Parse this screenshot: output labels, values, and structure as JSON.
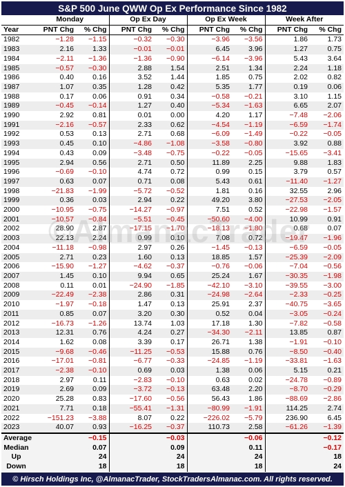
{
  "title": "S&P 500 June QWW Op Ex Performance Since 1982",
  "footer": "© Hirsch Holdings Inc, @AlmanacTrader, StockTradersAlmanac.com. All rights reserved.",
  "watermark": "©AlmanacTrader",
  "colors": {
    "header_bg": "#161a4d",
    "negative": "#e00000",
    "stripe": "#ededed"
  },
  "chart_data": {
    "type": "table",
    "groups": [
      "Monday",
      "Op Ex Day",
      "Op Ex Week",
      "Week After"
    ],
    "columns": [
      "Year",
      "PNT Chg",
      "% Chg",
      "PNT Chg",
      "% Chg",
      "PNT Chg",
      "% Chg",
      "PNT Chg",
      "% Chg"
    ],
    "rows": [
      [
        "1982",
        "−1.28",
        "−1.15",
        "−0.32",
        "−0.30",
        "−3.96",
        "−3.56",
        "1.86",
        "1.73"
      ],
      [
        "1983",
        "2.16",
        "1.33",
        "−0.01",
        "−0.01",
        "6.45",
        "3.96",
        "1.27",
        "0.75"
      ],
      [
        "1984",
        "−2.11",
        "−1.36",
        "−1.36",
        "−0.90",
        "−6.14",
        "−3.96",
        "5.43",
        "3.64"
      ],
      [
        "1985",
        "−0.57",
        "−0.30",
        "2.88",
        "1.54",
        "2.51",
        "1.34",
        "2.24",
        "1.18"
      ],
      [
        "1986",
        "0.40",
        "0.16",
        "3.52",
        "1.44",
        "1.85",
        "0.75",
        "2.02",
        "0.82"
      ],
      [
        "1987",
        "1.07",
        "0.35",
        "1.28",
        "0.42",
        "5.35",
        "1.77",
        "0.19",
        "0.06"
      ],
      [
        "1988",
        "0.17",
        "0.06",
        "0.91",
        "0.34",
        "−0.58",
        "−0.21",
        "3.10",
        "1.15"
      ],
      [
        "1989",
        "−0.45",
        "−0.14",
        "1.27",
        "0.40",
        "−5.34",
        "−1.63",
        "6.65",
        "2.07"
      ],
      [
        "1990",
        "2.92",
        "0.81",
        "0.01",
        "0.00",
        "4.20",
        "1.17",
        "−7.48",
        "−2.06"
      ],
      [
        "1991",
        "−2.16",
        "−0.57",
        "2.33",
        "0.62",
        "−4.54",
        "−1.19",
        "−6.59",
        "−1.74"
      ],
      [
        "1992",
        "0.53",
        "0.13",
        "2.71",
        "0.68",
        "−6.09",
        "−1.49",
        "−0.22",
        "−0.05"
      ],
      [
        "1993",
        "0.45",
        "0.10",
        "−4.86",
        "−1.08",
        "−3.58",
        "−0.80",
        "3.92",
        "0.88"
      ],
      [
        "1994",
        "0.43",
        "0.09",
        "−3.48",
        "−0.75",
        "−0.22",
        "−0.05",
        "−15.65",
        "−3.41"
      ],
      [
        "1995",
        "2.94",
        "0.56",
        "2.71",
        "0.50",
        "11.89",
        "2.25",
        "9.88",
        "1.83"
      ],
      [
        "1996",
        "−0.69",
        "−0.10",
        "4.74",
        "0.72",
        "0.99",
        "0.15",
        "3.79",
        "0.57"
      ],
      [
        "1997",
        "0.63",
        "0.07",
        "0.71",
        "0.08",
        "5.43",
        "0.61",
        "−11.40",
        "−1.27"
      ],
      [
        "1998",
        "−21.83",
        "−1.99",
        "−5.72",
        "−0.52",
        "1.81",
        "0.16",
        "32.55",
        "2.96"
      ],
      [
        "1999",
        "0.36",
        "0.03",
        "2.94",
        "0.22",
        "49.20",
        "3.80",
        "−27.53",
        "−2.05"
      ],
      [
        "2000",
        "−10.95",
        "−0.75",
        "−14.27",
        "−0.97",
        "7.51",
        "0.52",
        "−22.98",
        "−1.57"
      ],
      [
        "2001",
        "−10.57",
        "−0.84",
        "−5.51",
        "−0.45",
        "−50.60",
        "−4.00",
        "10.99",
        "0.91"
      ],
      [
        "2002",
        "28.90",
        "2.87",
        "−17.15",
        "−1.70",
        "−18.13",
        "−1.80",
        "0.68",
        "0.07"
      ],
      [
        "2003",
        "22.13",
        "2.24",
        "0.99",
        "0.10",
        "7.08",
        "0.72",
        "−19.47",
        "−1.96"
      ],
      [
        "2004",
        "−11.18",
        "−0.98",
        "2.97",
        "0.26",
        "−1.45",
        "−0.13",
        "−6.59",
        "−0.05"
      ],
      [
        "2005",
        "2.71",
        "0.23",
        "1.60",
        "0.13",
        "18.85",
        "1.57",
        "−25.39",
        "−2.09"
      ],
      [
        "2006",
        "−15.90",
        "−1.27",
        "−4.62",
        "−0.37",
        "−0.76",
        "−0.06",
        "−7.04",
        "−0.56"
      ],
      [
        "2007",
        "1.45",
        "0.10",
        "9.94",
        "0.65",
        "25.24",
        "1.67",
        "−30.35",
        "−1.98"
      ],
      [
        "2008",
        "0.11",
        "0.01",
        "−24.90",
        "−1.85",
        "−42.10",
        "−3.10",
        "−39.55",
        "−3.00"
      ],
      [
        "2009",
        "−22.49",
        "−2.38",
        "2.86",
        "0.31",
        "−24.98",
        "−2.64",
        "−2.33",
        "−0.25"
      ],
      [
        "2010",
        "−1.97",
        "−0.18",
        "1.47",
        "0.13",
        "25.91",
        "2.37",
        "−40.75",
        "−3.65"
      ],
      [
        "2011",
        "0.85",
        "0.07",
        "3.20",
        "0.30",
        "0.52",
        "0.04",
        "−3.05",
        "−0.24"
      ],
      [
        "2012",
        "−16.73",
        "−1.26",
        "13.74",
        "1.03",
        "17.18",
        "1.30",
        "−7.82",
        "−0.58"
      ],
      [
        "2013",
        "12.31",
        "0.76",
        "4.24",
        "0.27",
        "−34.30",
        "−2.11",
        "13.85",
        "0.87"
      ],
      [
        "2014",
        "1.62",
        "0.08",
        "3.39",
        "0.17",
        "26.71",
        "1.38",
        "−1.91",
        "−0.10"
      ],
      [
        "2015",
        "−9.68",
        "−0.46",
        "−11.25",
        "−0.53",
        "15.88",
        "0.76",
        "−8.50",
        "−0.40"
      ],
      [
        "2016",
        "−17.01",
        "−0.81",
        "−6.77",
        "−0.33",
        "−24.85",
        "−1.19",
        "−33.81",
        "−1.63"
      ],
      [
        "2017",
        "−2.38",
        "−0.10",
        "0.69",
        "0.03",
        "1.38",
        "0.06",
        "5.15",
        "0.21"
      ],
      [
        "2018",
        "2.97",
        "0.11",
        "−2.83",
        "−0.10",
        "0.63",
        "0.02",
        "−24.78",
        "−0.89"
      ],
      [
        "2019",
        "2.69",
        "0.09",
        "−3.72",
        "−0.13",
        "63.48",
        "2.20",
        "−8.70",
        "−0.29"
      ],
      [
        "2020",
        "25.28",
        "0.83",
        "−17.60",
        "−0.56",
        "56.43",
        "1.86",
        "−88.69",
        "−2.86"
      ],
      [
        "2021",
        "7.71",
        "0.18",
        "−55.41",
        "−1.31",
        "−80.99",
        "−1.91",
        "114.25",
        "2.74"
      ],
      [
        "2022",
        "−151.23",
        "−3.88",
        "8.07",
        "0.22",
        "−226.02",
        "−5.79",
        "236.90",
        "6.45"
      ],
      [
        "2023",
        "40.07",
        "0.93",
        "−16.25",
        "−0.37",
        "110.73",
        "2.58",
        "−61.26",
        "−1.39"
      ]
    ],
    "summary": [
      {
        "label": "Average",
        "values": [
          "",
          "−0.15",
          "",
          "−0.03",
          "",
          "−0.06",
          "",
          "−0.12"
        ]
      },
      {
        "label": "Median",
        "values": [
          "",
          "0.07",
          "",
          "0.09",
          "",
          "0.11",
          "",
          "−0.17"
        ]
      },
      {
        "label": "Up",
        "values": [
          "",
          "24",
          "",
          "24",
          "",
          "24",
          "",
          "18"
        ]
      },
      {
        "label": "Down",
        "values": [
          "",
          "18",
          "",
          "18",
          "",
          "18",
          "",
          "24"
        ]
      }
    ]
  }
}
